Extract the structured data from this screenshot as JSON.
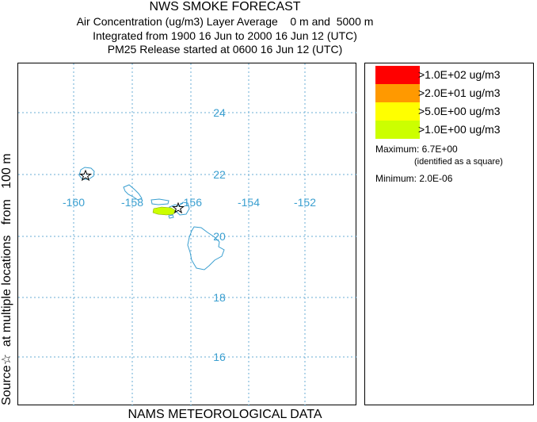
{
  "titles": {
    "line1": "NWS SMOKE FORECAST",
    "line2": "Air Concentration (ug/m3) Layer Average    0 m and  5000 m",
    "line3": "Integrated from 1900 16 Jun to 2000 16 Jun 12 (UTC)",
    "line4": "PM25 Release started at 0600 16 Jun 12 (UTC)"
  },
  "side_label": "Source☆  at multiple locations   from   100 m",
  "bottom_label": "NAMS METEOROLOGICAL DATA",
  "map": {
    "lon_labels": [
      "-160",
      "-158",
      "-156",
      "-154",
      "-152"
    ],
    "lat_labels": [
      "24",
      "22",
      "20",
      "18",
      "16"
    ],
    "grid_color": "#6aaed6",
    "coast_color": "#3a9fd0",
    "label_color": "#3a9fd0"
  },
  "legend": {
    "items": [
      {
        "color": "#ff0000",
        "label": ">1.0E+02 ug/m3"
      },
      {
        "color": "#ff9900",
        "label": ">2.0E+01 ug/m3"
      },
      {
        "color": "#ffff00",
        "label": ">5.0E+00 ug/m3"
      },
      {
        "color": "#ccff00",
        "label": ">1.0E+00 ug/m3"
      }
    ],
    "maximum": "Maximum: 6.7E+00",
    "maximum_note": "(identified as a square)",
    "minimum": "Minimum: 2.0E-06"
  }
}
